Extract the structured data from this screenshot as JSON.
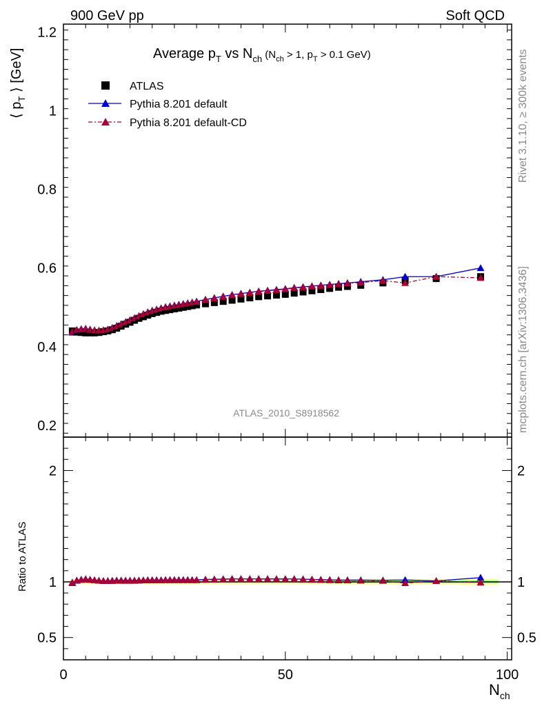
{
  "header": {
    "left": "900 GeV pp",
    "right": "Soft QCD"
  },
  "side_text": {
    "rivet": "Rivet 3.1.10, ≥ 300k events",
    "mcplots": "mcplots.cern.ch [arXiv:1306.3436]"
  },
  "analysis_label": "ATLAS_2010_S8918562",
  "title": {
    "main": "Average p",
    "main_sub": "T",
    "vs": " vs N",
    "vs_sub": "ch",
    "cond_open": " (N",
    "cond_sub1": "ch",
    "cond_mid": " > 1, p",
    "cond_sub2": "T",
    "cond_close": " > 0.1 GeV)"
  },
  "ylabel_main": {
    "prefix": "⟨ p",
    "sub": "T",
    "suffix": " ⟩ [GeV]"
  },
  "ylabel_ratio": "Ratio to ATLAS",
  "xlabel": {
    "main": "N",
    "sub": "ch"
  },
  "colors": {
    "atlas": "#000000",
    "default": "#0000cc",
    "cd": "#aa0033",
    "band_inner": "#99ff99",
    "band_outer": "#ffff99"
  },
  "chart_data": {
    "type": "scatter",
    "xlim": [
      0,
      101
    ],
    "ylim_main": [
      0.17,
      1.22
    ],
    "ylim_ratio": [
      0.3,
      2.3
    ],
    "x_ticks": [
      0,
      50,
      100
    ],
    "y_ticks_main": [
      0.2,
      0.4,
      0.6,
      0.8,
      1.0,
      1.2
    ],
    "y_tick_labels_main": [
      "0.2",
      "0.4",
      "0.6",
      "0.8",
      "1",
      "1.2"
    ],
    "y_ticks_ratio": [
      0.5,
      1,
      2
    ],
    "y_tick_labels_ratio": [
      "0.5",
      "1",
      "2"
    ],
    "x": [
      2,
      3,
      4,
      5,
      6,
      7,
      8,
      9,
      10,
      11,
      12,
      13,
      14,
      15,
      16,
      17,
      18,
      19,
      20,
      21,
      22,
      23,
      24,
      25,
      26,
      27,
      28,
      29,
      30,
      32,
      34,
      36,
      38,
      40,
      42,
      44,
      46,
      48,
      50,
      52,
      54,
      56,
      58,
      60,
      62,
      64,
      67,
      72,
      77,
      84,
      94
    ],
    "legend": [
      {
        "name": "ATLAS",
        "marker": "square"
      },
      {
        "name": "Pythia 8.201 default",
        "marker": "triangle"
      },
      {
        "name": "Pythia 8.201 default-CD",
        "marker": "triangle"
      }
    ],
    "series": [
      {
        "name": "ATLAS",
        "values": [
          0.44,
          0.437,
          0.436,
          0.435,
          0.435,
          0.435,
          0.436,
          0.438,
          0.44,
          0.443,
          0.447,
          0.452,
          0.457,
          0.462,
          0.467,
          0.472,
          0.476,
          0.48,
          0.484,
          0.487,
          0.49,
          0.492,
          0.494,
          0.496,
          0.498,
          0.5,
          0.502,
          0.504,
          0.506,
          0.509,
          0.512,
          0.515,
          0.518,
          0.521,
          0.524,
          0.527,
          0.529,
          0.531,
          0.533,
          0.536,
          0.539,
          0.542,
          0.545,
          0.548,
          0.551,
          0.553,
          0.556,
          0.562,
          0.568,
          0.573,
          0.578
        ]
      },
      {
        "name": "Pythia 8.201 default",
        "values": [
          0.436,
          0.442,
          0.445,
          0.446,
          0.444,
          0.442,
          0.441,
          0.442,
          0.444,
          0.448,
          0.453,
          0.458,
          0.463,
          0.468,
          0.473,
          0.478,
          0.483,
          0.488,
          0.492,
          0.495,
          0.498,
          0.501,
          0.503,
          0.505,
          0.507,
          0.509,
          0.511,
          0.513,
          0.515,
          0.52,
          0.524,
          0.528,
          0.532,
          0.535,
          0.538,
          0.541,
          0.543,
          0.545,
          0.547,
          0.55,
          0.552,
          0.554,
          0.556,
          0.558,
          0.56,
          0.562,
          0.565,
          0.57,
          0.578,
          0.578,
          0.6
        ]
      },
      {
        "name": "Pythia 8.201 default-CD",
        "values": [
          0.438,
          0.443,
          0.444,
          0.445,
          0.443,
          0.442,
          0.441,
          0.442,
          0.444,
          0.447,
          0.452,
          0.457,
          0.462,
          0.467,
          0.472,
          0.478,
          0.483,
          0.487,
          0.491,
          0.494,
          0.497,
          0.5,
          0.502,
          0.504,
          0.506,
          0.508,
          0.51,
          0.512,
          0.514,
          0.519,
          0.523,
          0.527,
          0.531,
          0.534,
          0.537,
          0.54,
          0.542,
          0.544,
          0.546,
          0.549,
          0.551,
          0.553,
          0.555,
          0.557,
          0.559,
          0.561,
          0.563,
          0.568,
          0.562,
          0.578,
          0.575
        ]
      }
    ]
  }
}
